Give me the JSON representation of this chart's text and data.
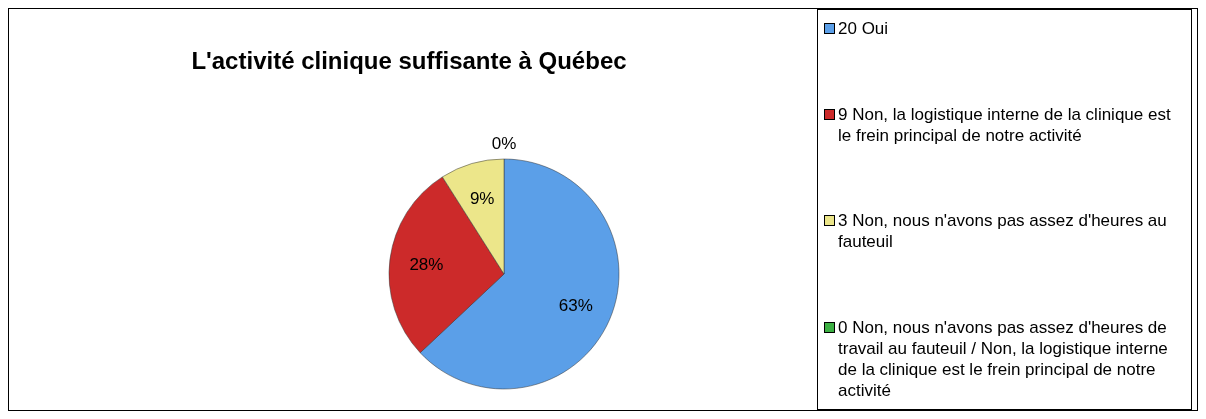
{
  "chart_data": {
    "type": "pie",
    "title": "L'activité clinique suffisante à Québec",
    "categories": [
      "20 Oui",
      "9 Non, la logistique interne de la clinique est le frein principal de notre activité",
      "3 Non, nous n'avons pas assez d'heures au fauteuil",
      "0 Non, nous n'avons pas assez d'heures de travail au fauteuil / Non, la logistique interne de la clinique est le frein principal de notre activité"
    ],
    "values": [
      63,
      28,
      9,
      0
    ],
    "colors": [
      "#5b9fe8",
      "#cc2a2a",
      "#ece68a",
      "#3cb043"
    ],
    "value_labels": [
      "63%",
      "28%",
      "9%",
      "0%"
    ],
    "legend": "right"
  }
}
